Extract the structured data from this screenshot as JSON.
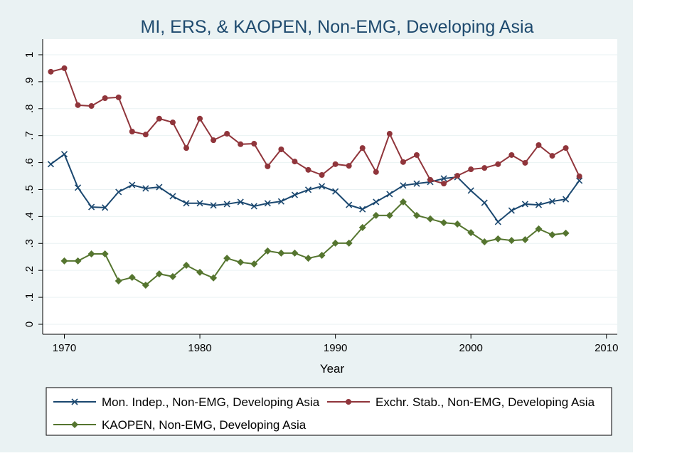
{
  "chart_data": {
    "type": "line",
    "title": "MI, ERS, & KAOPEN, Non-EMG, Developing Asia",
    "x_label": "Year",
    "x": [
      1969,
      1970,
      1971,
      1972,
      1973,
      1974,
      1975,
      1976,
      1977,
      1978,
      1979,
      1980,
      1981,
      1982,
      1983,
      1984,
      1985,
      1986,
      1987,
      1988,
      1989,
      1990,
      1991,
      1992,
      1993,
      1994,
      1995,
      1996,
      1997,
      1998,
      1999,
      2000,
      2001,
      2002,
      2003,
      2004,
      2005,
      2006,
      2007,
      2008
    ],
    "series": [
      {
        "name": "Mon. Indep., Non-EMG, Developing Asia",
        "color": "#1a476f",
        "marker": "x",
        "values": [
          0.594,
          0.631,
          0.507,
          0.435,
          0.433,
          0.491,
          0.517,
          0.504,
          0.509,
          0.475,
          0.449,
          0.449,
          0.441,
          0.446,
          0.454,
          0.438,
          0.449,
          0.456,
          0.48,
          0.499,
          0.512,
          0.493,
          0.443,
          0.427,
          0.454,
          0.483,
          0.515,
          0.522,
          0.528,
          0.541,
          0.546,
          0.496,
          0.451,
          0.38,
          0.422,
          0.446,
          0.443,
          0.456,
          0.464,
          0.533
        ]
      },
      {
        "name": "Exchr. Stab., Non-EMG, Developing Asia",
        "color": "#90353b",
        "marker": "circle",
        "values": [
          0.937,
          0.95,
          0.813,
          0.81,
          0.839,
          0.842,
          0.715,
          0.704,
          0.763,
          0.749,
          0.654,
          0.763,
          0.683,
          0.707,
          0.668,
          0.67,
          0.586,
          0.649,
          0.604,
          0.573,
          0.554,
          0.594,
          0.588,
          0.654,
          0.565,
          0.707,
          0.602,
          0.628,
          0.536,
          0.522,
          0.551,
          0.575,
          0.58,
          0.594,
          0.628,
          0.599,
          0.665,
          0.625,
          0.654,
          0.549
        ]
      },
      {
        "name": "KAOPEN, Non-EMG, Developing Asia",
        "color": "#55752f",
        "marker": "diamond",
        "values": [
          null,
          0.235,
          0.235,
          0.261,
          0.261,
          0.161,
          0.174,
          0.145,
          0.187,
          0.177,
          0.219,
          0.193,
          0.172,
          0.245,
          0.23,
          0.224,
          0.272,
          0.264,
          0.264,
          0.245,
          0.256,
          0.301,
          0.301,
          0.359,
          0.404,
          0.404,
          0.454,
          0.404,
          0.391,
          0.377,
          0.372,
          0.34,
          0.306,
          0.317,
          0.311,
          0.314,
          0.354,
          0.332,
          0.338,
          null
        ]
      }
    ],
    "xlim": [
      1968.4,
      2010.8
    ],
    "xticks": [
      1970,
      1980,
      1990,
      2000,
      2010
    ],
    "ylim": [
      -0.037,
      1.058
    ],
    "yticks": [
      0,
      {
        "value": 0.1,
        "label": ".1"
      },
      {
        "value": 0.2,
        "label": ".2"
      },
      {
        "value": 0.3,
        "label": ".3"
      },
      {
        "value": 0.4,
        "label": ".4"
      },
      {
        "value": 0.5,
        "label": ".5"
      },
      {
        "value": 0.6,
        "label": ".6"
      },
      {
        "value": 0.7,
        "label": ".7"
      },
      {
        "value": 0.8,
        "label": ".8"
      },
      {
        "value": 0.9,
        "label": ".9"
      },
      1
    ],
    "grid": true
  }
}
